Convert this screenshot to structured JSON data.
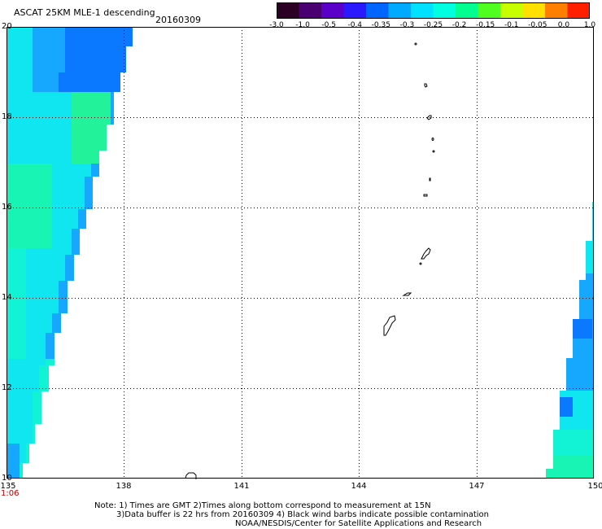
{
  "header": {
    "title": "ASCAT 25KM MLE-1 descending",
    "date": "20160309"
  },
  "colorbar": {
    "ticks": [
      "-3.0",
      "-1.0",
      "-0.5",
      "-0.4",
      "-0.35",
      "-0.3",
      "-0.25",
      "-0.2",
      "-0.15",
      "-0.1",
      "-0.05",
      "0.0",
      "1.0"
    ],
    "colors": [
      "#2b0024",
      "#4a0070",
      "#5a00c8",
      "#2a18ff",
      "#0066ff",
      "#00aaff",
      "#00e0ff",
      "#00ffe0",
      "#00ff90",
      "#50ff20",
      "#c8ff00",
      "#ffe000",
      "#ff8000",
      "#ff2000"
    ]
  },
  "map": {
    "lat_labels": [
      "20",
      "18",
      "16",
      "14",
      "12",
      "10"
    ],
    "lon_labels": [
      "135",
      "138",
      "141",
      "144",
      "147",
      "150"
    ],
    "lat_range": [
      10,
      20
    ],
    "lon_range": [
      135,
      150
    ],
    "time_label": "1:06",
    "swath_colors": {
      "blue": "#0a78ff",
      "lightblue": "#16a8ff",
      "cyan": "#10e6f0",
      "aqua": "#12f2d4",
      "teal": "#18f4b4",
      "green": "#22f29a"
    }
  },
  "notes": [
    "Note: 1) Times are GMT 2)Times along bottom correspond to measurement at 15N",
    "3)Data buffer is 22 hrs from 20160309 4) Black wind barbs indicate possible contamination",
    "NOAA/NESDIS/Center for Satellite Applications and Research"
  ]
}
